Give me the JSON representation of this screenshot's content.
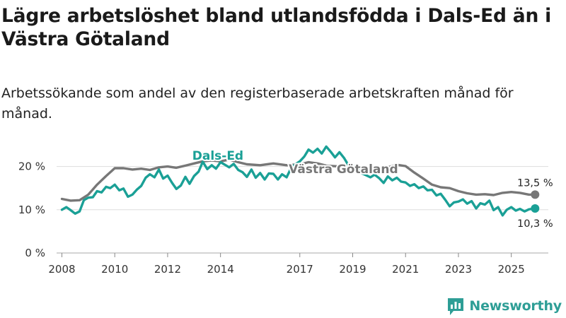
{
  "title": "Lägre arbetslöshet bland utlandsfödda i Dals-Ed än i Västra Götaland",
  "subtitle": "Arbetssökande som andel av den registerbaserade arbetskraften månad för månad.",
  "brand": {
    "name": "Newsworthy",
    "icon": "newsworthy-logo-icon"
  },
  "colors": {
    "dals_ed": "#1aa096",
    "vastra_gotaland": "#777777",
    "grid": "#dddddd"
  },
  "chart_data": {
    "type": "line",
    "title": "Lägre arbetslöshet bland utlandsfödda i Dals-Ed än i Västra Götaland",
    "subtitle": "Arbetssökande som andel av den registerbaserade arbetskraften månad för månad.",
    "xlabel": "",
    "ylabel": "",
    "xlim": [
      2007.8,
      2026.4
    ],
    "ylim": [
      0,
      25
    ],
    "yticks": [
      {
        "v": 0,
        "label": "0 %"
      },
      {
        "v": 10,
        "label": "10 %"
      },
      {
        "v": 20,
        "label": "20 %"
      }
    ],
    "xticks": [
      {
        "v": 2008,
        "label": "2008"
      },
      {
        "v": 2010,
        "label": "2010"
      },
      {
        "v": 2012,
        "label": "2012"
      },
      {
        "v": 2014,
        "label": "2014"
      },
      {
        "v": 2017,
        "label": "2017"
      },
      {
        "v": 2019,
        "label": "2019"
      },
      {
        "v": 2021,
        "label": "2021"
      },
      {
        "v": 2023,
        "label": "2023"
      },
      {
        "v": 2025,
        "label": "2025"
      }
    ],
    "grid": true,
    "series": [
      {
        "name": "Västra Götaland",
        "color": "#777777",
        "end_label": "13,5 %",
        "points": [
          [
            2008.0,
            12.5
          ],
          [
            2008.33,
            12.1
          ],
          [
            2008.67,
            12.2
          ],
          [
            2009.0,
            13.5
          ],
          [
            2009.33,
            15.8
          ],
          [
            2009.67,
            17.8
          ],
          [
            2010.0,
            19.6
          ],
          [
            2010.33,
            19.6
          ],
          [
            2010.67,
            19.3
          ],
          [
            2011.0,
            19.5
          ],
          [
            2011.33,
            19.2
          ],
          [
            2011.67,
            19.8
          ],
          [
            2012.0,
            20.0
          ],
          [
            2012.33,
            19.7
          ],
          [
            2012.67,
            20.2
          ],
          [
            2013.0,
            20.7
          ],
          [
            2013.33,
            21.2
          ],
          [
            2013.67,
            21.4
          ],
          [
            2014.0,
            21.2
          ],
          [
            2014.33,
            21.6
          ],
          [
            2014.67,
            21.0
          ],
          [
            2015.0,
            20.5
          ],
          [
            2015.5,
            20.3
          ],
          [
            2016.0,
            20.7
          ],
          [
            2016.5,
            20.3
          ],
          [
            2017.0,
            20.5
          ],
          [
            2017.33,
            21.0
          ],
          [
            2017.67,
            20.7
          ],
          [
            2018.0,
            20.2
          ],
          [
            2018.5,
            20.0
          ],
          [
            2019.0,
            19.7
          ],
          [
            2019.5,
            19.5
          ],
          [
            2020.0,
            19.2
          ],
          [
            2020.33,
            19.8
          ],
          [
            2020.67,
            20.4
          ],
          [
            2021.0,
            20.1
          ],
          [
            2021.33,
            18.6
          ],
          [
            2021.67,
            17.2
          ],
          [
            2022.0,
            15.8
          ],
          [
            2022.33,
            15.2
          ],
          [
            2022.67,
            15.0
          ],
          [
            2023.0,
            14.3
          ],
          [
            2023.33,
            13.8
          ],
          [
            2023.67,
            13.5
          ],
          [
            2024.0,
            13.6
          ],
          [
            2024.33,
            13.4
          ],
          [
            2024.67,
            13.9
          ],
          [
            2025.0,
            14.1
          ],
          [
            2025.33,
            13.9
          ],
          [
            2025.67,
            13.5
          ],
          [
            2025.9,
            13.5
          ]
        ]
      },
      {
        "name": "Dals-Ed",
        "color": "#1aa096",
        "end_label": "10,3 %",
        "points": [
          [
            2008.0,
            10.0
          ],
          [
            2008.17,
            10.6
          ],
          [
            2008.33,
            9.9
          ],
          [
            2008.5,
            9.1
          ],
          [
            2008.67,
            9.6
          ],
          [
            2008.83,
            12.2
          ],
          [
            2009.0,
            12.8
          ],
          [
            2009.17,
            12.9
          ],
          [
            2009.33,
            14.3
          ],
          [
            2009.5,
            14.0
          ],
          [
            2009.67,
            15.3
          ],
          [
            2009.83,
            15.0
          ],
          [
            2010.0,
            15.8
          ],
          [
            2010.17,
            14.5
          ],
          [
            2010.33,
            14.9
          ],
          [
            2010.5,
            13.0
          ],
          [
            2010.67,
            13.5
          ],
          [
            2010.83,
            14.6
          ],
          [
            2011.0,
            15.5
          ],
          [
            2011.17,
            17.4
          ],
          [
            2011.33,
            18.2
          ],
          [
            2011.5,
            17.5
          ],
          [
            2011.67,
            19.3
          ],
          [
            2011.83,
            17.2
          ],
          [
            2012.0,
            17.9
          ],
          [
            2012.17,
            16.2
          ],
          [
            2012.33,
            14.8
          ],
          [
            2012.5,
            15.6
          ],
          [
            2012.67,
            17.6
          ],
          [
            2012.83,
            16.0
          ],
          [
            2013.0,
            17.8
          ],
          [
            2013.17,
            18.8
          ],
          [
            2013.33,
            21.1
          ],
          [
            2013.5,
            19.4
          ],
          [
            2013.67,
            20.3
          ],
          [
            2013.83,
            19.5
          ],
          [
            2014.0,
            21.0
          ],
          [
            2014.17,
            20.4
          ],
          [
            2014.33,
            19.8
          ],
          [
            2014.5,
            20.6
          ],
          [
            2014.67,
            19.2
          ],
          [
            2014.83,
            18.7
          ],
          [
            2015.0,
            17.6
          ],
          [
            2015.17,
            19.3
          ],
          [
            2015.33,
            17.4
          ],
          [
            2015.5,
            18.5
          ],
          [
            2015.67,
            17.0
          ],
          [
            2015.83,
            18.4
          ],
          [
            2016.0,
            18.3
          ],
          [
            2016.17,
            17.0
          ],
          [
            2016.33,
            18.2
          ],
          [
            2016.5,
            17.5
          ],
          [
            2016.67,
            19.6
          ],
          [
            2016.83,
            20.5
          ],
          [
            2017.0,
            21.2
          ],
          [
            2017.17,
            22.3
          ],
          [
            2017.33,
            23.9
          ],
          [
            2017.5,
            23.2
          ],
          [
            2017.67,
            24.1
          ],
          [
            2017.83,
            23.0
          ],
          [
            2018.0,
            24.6
          ],
          [
            2018.17,
            23.4
          ],
          [
            2018.33,
            22.1
          ],
          [
            2018.5,
            23.3
          ],
          [
            2018.67,
            22.0
          ],
          [
            2018.83,
            20.4
          ],
          [
            2019.0,
            20.2
          ],
          [
            2019.17,
            19.7
          ],
          [
            2019.33,
            18.5
          ],
          [
            2019.5,
            18.0
          ],
          [
            2019.67,
            17.5
          ],
          [
            2019.83,
            18.1
          ],
          [
            2020.0,
            17.3
          ],
          [
            2020.17,
            16.2
          ],
          [
            2020.33,
            17.7
          ],
          [
            2020.5,
            16.8
          ],
          [
            2020.67,
            17.4
          ],
          [
            2020.83,
            16.5
          ],
          [
            2021.0,
            16.3
          ],
          [
            2021.17,
            15.5
          ],
          [
            2021.33,
            15.9
          ],
          [
            2021.5,
            15.0
          ],
          [
            2021.67,
            15.4
          ],
          [
            2021.83,
            14.5
          ],
          [
            2022.0,
            14.6
          ],
          [
            2022.17,
            13.3
          ],
          [
            2022.33,
            13.7
          ],
          [
            2022.5,
            12.3
          ],
          [
            2022.67,
            10.8
          ],
          [
            2022.83,
            11.7
          ],
          [
            2023.0,
            11.9
          ],
          [
            2023.17,
            12.4
          ],
          [
            2023.33,
            11.4
          ],
          [
            2023.5,
            12.0
          ],
          [
            2023.67,
            10.3
          ],
          [
            2023.83,
            11.5
          ],
          [
            2024.0,
            11.2
          ],
          [
            2024.17,
            12.1
          ],
          [
            2024.33,
            9.9
          ],
          [
            2024.5,
            10.6
          ],
          [
            2024.67,
            8.7
          ],
          [
            2024.83,
            10.0
          ],
          [
            2025.0,
            10.6
          ],
          [
            2025.17,
            9.8
          ],
          [
            2025.33,
            10.2
          ],
          [
            2025.5,
            9.6
          ],
          [
            2025.67,
            10.1
          ],
          [
            2025.9,
            10.3
          ]
        ]
      }
    ],
    "annotations": [
      {
        "text": "Dals-Ed",
        "series": "Dals-Ed",
        "x": 2013.9,
        "y": 21.6
      },
      {
        "text": "Västra Götaland",
        "series": "Västra Götaland",
        "x": 2018.65,
        "y": 18.5
      }
    ]
  }
}
